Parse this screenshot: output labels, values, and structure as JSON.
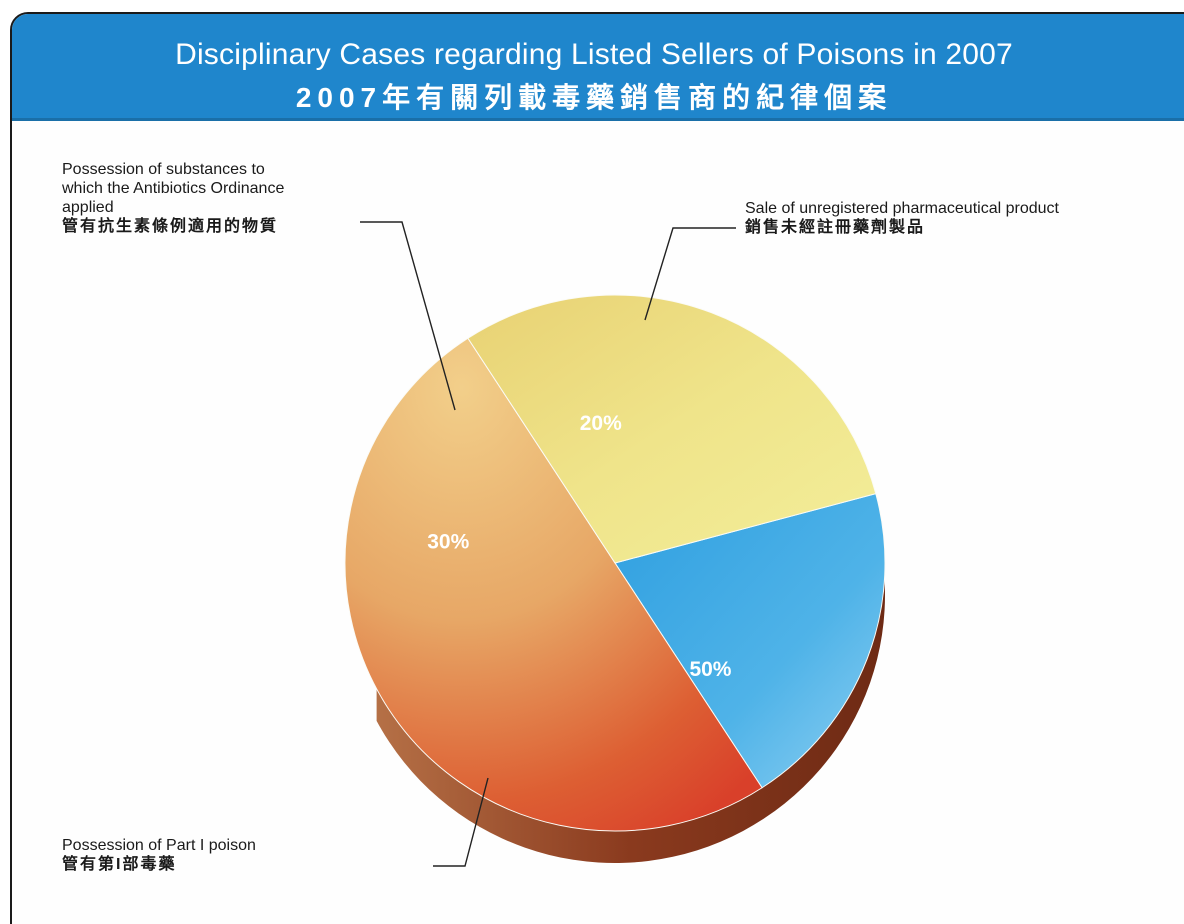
{
  "title": {
    "en": "Disciplinary Cases regarding Listed Sellers of Poisons in 2007",
    "zh": "2007年有關列載毒藥銷售商的紀律個案"
  },
  "chart_data": {
    "type": "pie",
    "title": "Disciplinary Cases regarding Listed Sellers of Poisons in 2007",
    "slices": [
      {
        "label_en_lines": [
          "Sale of unregistered pharmaceutical product"
        ],
        "label_zh": "銷售未經註冊藥劑製品",
        "value": 20,
        "value_label": "20%",
        "color": "#3aa6e2"
      },
      {
        "label_en_lines": [
          "Possession of Part I poison"
        ],
        "label_zh": "管有第I部毒藥",
        "value": 50,
        "value_label": "50%",
        "color": "#e07a3a"
      },
      {
        "label_en_lines": [
          "Possession of substances to",
          "which the Antibiotics Ordinance",
          "applied"
        ],
        "label_zh": "管有抗生素條例適用的物質",
        "value": 30,
        "value_label": "30%",
        "color": "#ede57a"
      }
    ],
    "start_angle_deg": -15,
    "direction": "clockwise"
  },
  "colors": {
    "banner": "#1f86cc",
    "shadow": "#8a3a1e",
    "leader": "#222222"
  }
}
